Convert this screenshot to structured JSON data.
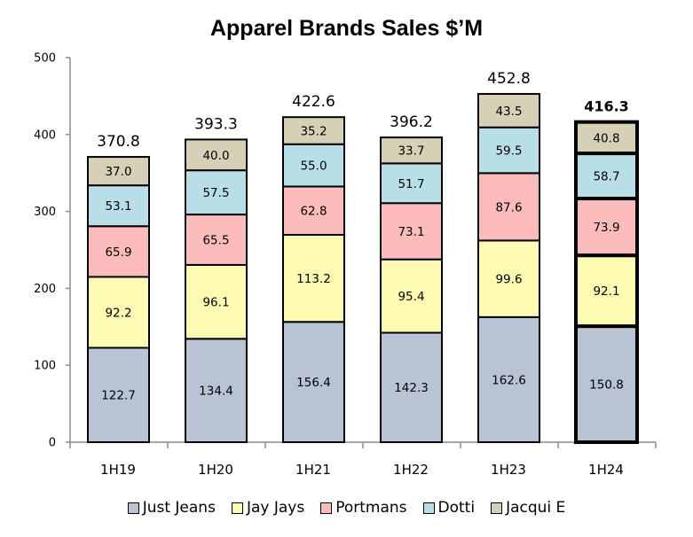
{
  "chart_data": {
    "type": "bar",
    "stacked": true,
    "title": "Apparel Brands Sales $’M",
    "xlabel": "",
    "ylabel": "",
    "ylim": [
      0,
      500
    ],
    "yticks": [
      0,
      100,
      200,
      300,
      400,
      500
    ],
    "grid": false,
    "legend_position": "bottom",
    "categories": [
      "1H19",
      "1H20",
      "1H21",
      "1H22",
      "1H23",
      "1H24"
    ],
    "series": [
      {
        "name": "Just Jeans",
        "color": "#b8c4d4",
        "values": [
          122.7,
          134.4,
          156.4,
          142.3,
          162.6,
          150.8
        ]
      },
      {
        "name": "Jay Jays",
        "color": "#fefcb3",
        "values": [
          92.2,
          96.1,
          113.2,
          95.4,
          99.6,
          92.1
        ]
      },
      {
        "name": "Portmans",
        "color": "#fcbcbc",
        "values": [
          65.9,
          65.5,
          62.8,
          73.1,
          87.6,
          73.9
        ]
      },
      {
        "name": "Dotti",
        "color": "#b8dfe8",
        "values": [
          53.1,
          57.5,
          55.0,
          51.7,
          59.5,
          58.7
        ]
      },
      {
        "name": "Jacqui E",
        "color": "#d6d0b6",
        "values": [
          37.0,
          40.0,
          35.2,
          33.7,
          43.5,
          40.8
        ]
      }
    ],
    "value_labels": [
      [
        "122.7",
        "134.4",
        "156.4",
        "142.3",
        "162.6",
        "150.8"
      ],
      [
        "92.2",
        "96.1",
        "113.2",
        "95.4",
        "99.6",
        "92.1"
      ],
      [
        "65.9",
        "65.5",
        "62.8",
        "73.1",
        "87.6",
        "73.9"
      ],
      [
        "53.1",
        "57.5",
        "55.0",
        "51.7",
        "59.5",
        "58.7"
      ],
      [
        "37.0",
        "40.0",
        "35.2",
        "33.7",
        "43.5",
        "40.8"
      ]
    ],
    "totals": [
      370.8,
      393.3,
      422.6,
      396.2,
      452.8,
      416.3
    ],
    "total_labels": [
      "370.8",
      "393.3",
      "422.6",
      "396.2",
      "452.8",
      "416.3"
    ],
    "highlighted_category": "1H24"
  }
}
